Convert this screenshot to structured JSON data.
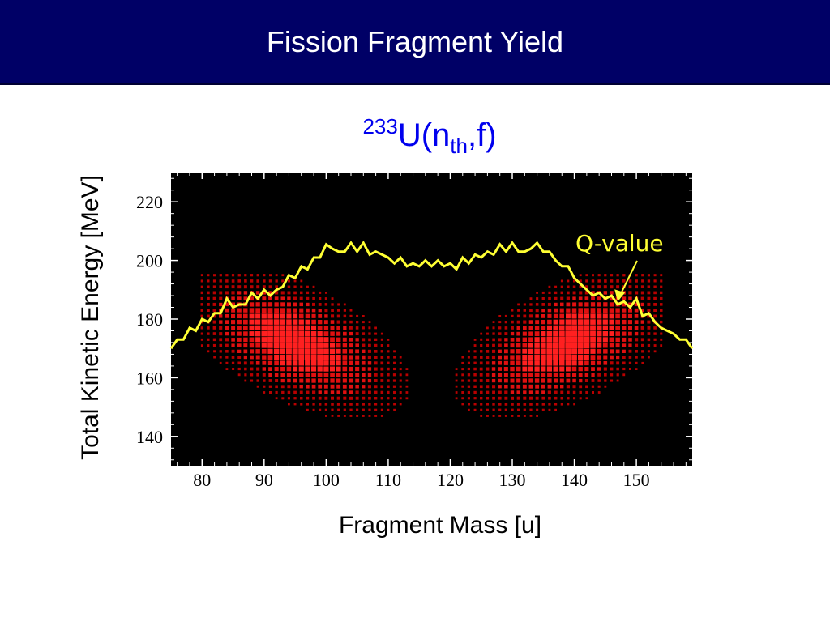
{
  "slide": {
    "title": "Fission Fragment Yield"
  },
  "chart_title": {
    "mass_number": "233",
    "element": "U(n",
    "subscript": "th",
    "suffix": ",f)"
  },
  "colors": {
    "header_bg": "#000066",
    "title_blue": "#0000ee",
    "plot_bg": "#000000",
    "yield_red": "#ff1a1a",
    "qvalue_yellow": "#ffff33"
  },
  "chart_data": {
    "type": "heatmap",
    "xlabel": "Fragment Mass [u]",
    "ylabel": "Total Kinetic Energy [MeV]",
    "xlim": [
      75,
      159
    ],
    "ylim": [
      130,
      230
    ],
    "xticks": [
      80,
      90,
      100,
      110,
      120,
      130,
      140,
      150
    ],
    "yticks": [
      140,
      160,
      180,
      200,
      220
    ],
    "grid": false,
    "heatmap": {
      "description": "fission fragment yield intensity (red squares, size ~ yield)",
      "peaks": [
        {
          "mass": 95,
          "tke": 172
        },
        {
          "mass": 139,
          "tke": 172
        }
      ],
      "mass_range": [
        80,
        154
      ],
      "tke_range": [
        145,
        195
      ],
      "mass_step": 1,
      "tke_step": 2
    },
    "qvalue_series": {
      "name": "Q-value",
      "x": [
        75,
        76,
        77,
        78,
        79,
        80,
        81,
        82,
        83,
        84,
        85,
        86,
        87,
        88,
        89,
        90,
        91,
        92,
        93,
        94,
        95,
        96,
        97,
        98,
        99,
        100,
        101,
        102,
        103,
        104,
        105,
        106,
        107,
        108,
        109,
        110,
        111,
        112,
        113,
        114,
        115,
        116,
        117,
        118,
        119,
        120,
        121,
        122,
        123,
        124,
        125,
        126,
        127,
        128,
        129,
        130,
        131,
        132,
        133,
        134,
        135,
        136,
        137,
        138,
        139,
        140,
        141,
        142,
        143,
        144,
        145,
        146,
        147,
        148,
        149,
        150,
        151,
        152,
        153,
        154,
        155,
        156,
        157,
        158,
        159
      ],
      "y": [
        170,
        173,
        173,
        177,
        176,
        180,
        179,
        182,
        182,
        187,
        184,
        185,
        185,
        189,
        187,
        190,
        188,
        190,
        191,
        195,
        194,
        198,
        197,
        201,
        201,
        205.5,
        204,
        203,
        203,
        206,
        203,
        206,
        202,
        203,
        202,
        201,
        199,
        201,
        198,
        199,
        198,
        200,
        198,
        200,
        198,
        199,
        197,
        201,
        199,
        202,
        201,
        203,
        202,
        205.5,
        203,
        206,
        203,
        203,
        204,
        206,
        203,
        203,
        200,
        198,
        198,
        194,
        192,
        190,
        188,
        189,
        187,
        188,
        185,
        186,
        184,
        187,
        181,
        182,
        179,
        177,
        176,
        175,
        173,
        173,
        170
      ]
    },
    "annotations": [
      {
        "text": "Q-value",
        "points_to": {
          "x": 147,
          "y": 186
        }
      }
    ]
  }
}
